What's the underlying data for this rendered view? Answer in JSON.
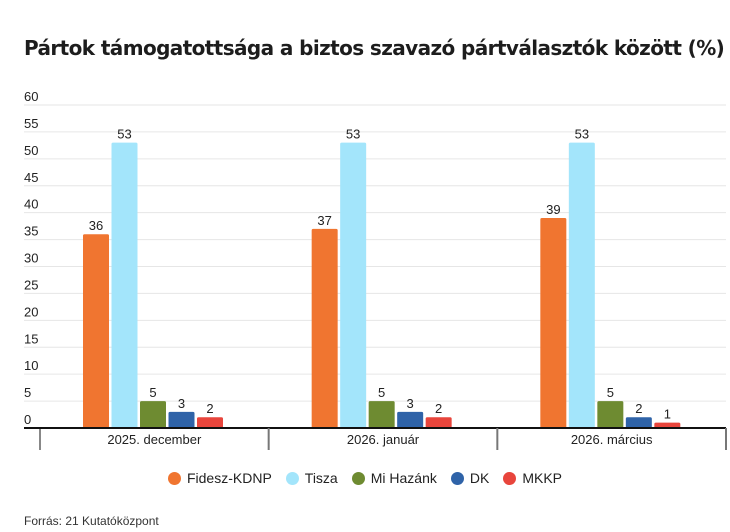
{
  "chart_data": {
    "type": "bar",
    "title": "Pártok támogatottsága a biztos szavazó pártválasztók között (%)",
    "xlabel": "",
    "ylabel": "",
    "ylim": [
      0,
      60
    ],
    "yticks": [
      0,
      5,
      10,
      15,
      20,
      25,
      30,
      35,
      40,
      45,
      50,
      55,
      60
    ],
    "grid": true,
    "categories": [
      "2025. december",
      "2026. január",
      "2026. március"
    ],
    "series": [
      {
        "name": "Fidesz-KDNP",
        "color": "#f07530",
        "values": [
          36,
          37,
          39
        ]
      },
      {
        "name": "Tisza",
        "color": "#a3e5fb",
        "values": [
          53,
          53,
          53
        ]
      },
      {
        "name": "Mi Hazánk",
        "color": "#6e8b31",
        "values": [
          5,
          5,
          5
        ]
      },
      {
        "name": "DK",
        "color": "#2f63a8",
        "values": [
          3,
          3,
          2
        ]
      },
      {
        "name": "MKKP",
        "color": "#e8453c",
        "values": [
          2,
          2,
          1
        ]
      }
    ],
    "data_labels": true,
    "legend_position": "bottom-center",
    "source": "Forrás: 21 Kutatóközpont"
  }
}
